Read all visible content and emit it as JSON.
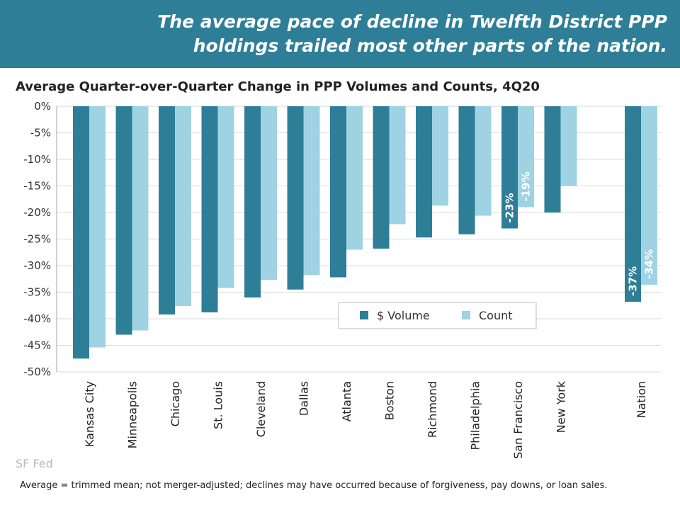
{
  "banner": {
    "line1": "The average pace of decline in Twelfth District PPP",
    "line2": "holdings trailed most other parts of the nation."
  },
  "chart_data": {
    "type": "bar",
    "title": "Average Quarter-over-Quarter  Change in PPP Volumes and Counts, 4Q20",
    "categories": [
      "Kansas City",
      "Minneapolis",
      "Chicago",
      "St. Louis",
      "Cleveland",
      "Dallas",
      "Atlanta",
      "Boston",
      "Richmond",
      "Philadelphia",
      "San Francisco",
      "New York",
      "Nation"
    ],
    "series": [
      {
        "name": "$ Volume",
        "color": "#2e7e98",
        "values": [
          -47.5,
          -43,
          -39.2,
          -38.8,
          -36,
          -34.5,
          -32.2,
          -26.8,
          -24.7,
          -24.1,
          -23,
          -20,
          -36.8
        ]
      },
      {
        "name": "Count",
        "color": "#9fd3e3",
        "values": [
          -45.4,
          -42.2,
          -37.6,
          -34.2,
          -32.7,
          -31.8,
          -27,
          -22.2,
          -18.7,
          -20.6,
          -19,
          -15,
          -33.6
        ]
      }
    ],
    "data_labels": [
      {
        "category": "San Francisco",
        "series": "$ Volume",
        "text": "-23%"
      },
      {
        "category": "San Francisco",
        "series": "Count",
        "text": "-19%"
      },
      {
        "category": "Nation",
        "series": "$ Volume",
        "text": "-37%"
      },
      {
        "category": "Nation",
        "series": "Count",
        "text": "-34%"
      }
    ],
    "yticks": [
      "0%",
      "-5%",
      "-10%",
      "-15%",
      "-20%",
      "-25%",
      "-30%",
      "-35%",
      "-40%",
      "-45%",
      "-50%"
    ],
    "ylim": [
      -50,
      0
    ],
    "grid": true,
    "legend_position": "bottom-right"
  },
  "watermark": "SF Fed",
  "footnote": "Average = trimmed mean; not merger-adjusted; declines may have occurred because of forgiveness, pay downs, or loan sales."
}
